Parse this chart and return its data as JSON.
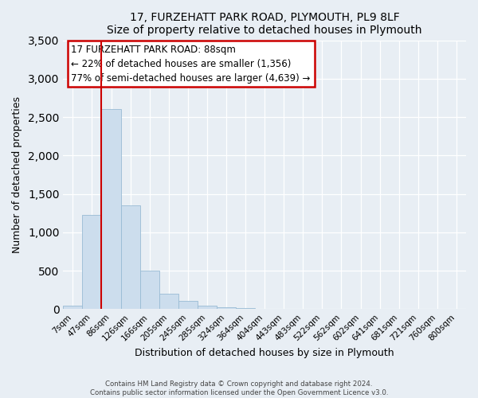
{
  "title1": "17, FURZEHATT PARK ROAD, PLYMOUTH, PL9 8LF",
  "title2": "Size of property relative to detached houses in Plymouth",
  "xlabel": "Distribution of detached houses by size in Plymouth",
  "ylabel": "Number of detached properties",
  "bar_labels": [
    "7sqm",
    "47sqm",
    "86sqm",
    "126sqm",
    "166sqm",
    "205sqm",
    "245sqm",
    "285sqm",
    "324sqm",
    "364sqm",
    "404sqm",
    "443sqm",
    "483sqm",
    "522sqm",
    "562sqm",
    "602sqm",
    "641sqm",
    "681sqm",
    "721sqm",
    "760sqm",
    "800sqm"
  ],
  "bar_values": [
    50,
    1230,
    2600,
    1350,
    500,
    200,
    110,
    50,
    25,
    15,
    0,
    0,
    0,
    0,
    0,
    0,
    0,
    0,
    0,
    0,
    0
  ],
  "bar_color": "#ccdded",
  "bar_edge_color": "#99bbd4",
  "marker_line_color": "#cc0000",
  "annotation_title": "17 FURZEHATT PARK ROAD: 88sqm",
  "annotation_line1": "← 22% of detached houses are smaller (1,356)",
  "annotation_line2": "77% of semi-detached houses are larger (4,639) →",
  "annotation_box_color": "#ffffff",
  "annotation_box_edge": "#cc0000",
  "ylim": [
    0,
    3500
  ],
  "yticks": [
    0,
    500,
    1000,
    1500,
    2000,
    2500,
    3000,
    3500
  ],
  "footer1": "Contains HM Land Registry data © Crown copyright and database right 2024.",
  "footer2": "Contains public sector information licensed under the Open Government Licence v3.0.",
  "background_color": "#e8eef4",
  "plot_bg_color": "#e8eef4"
}
